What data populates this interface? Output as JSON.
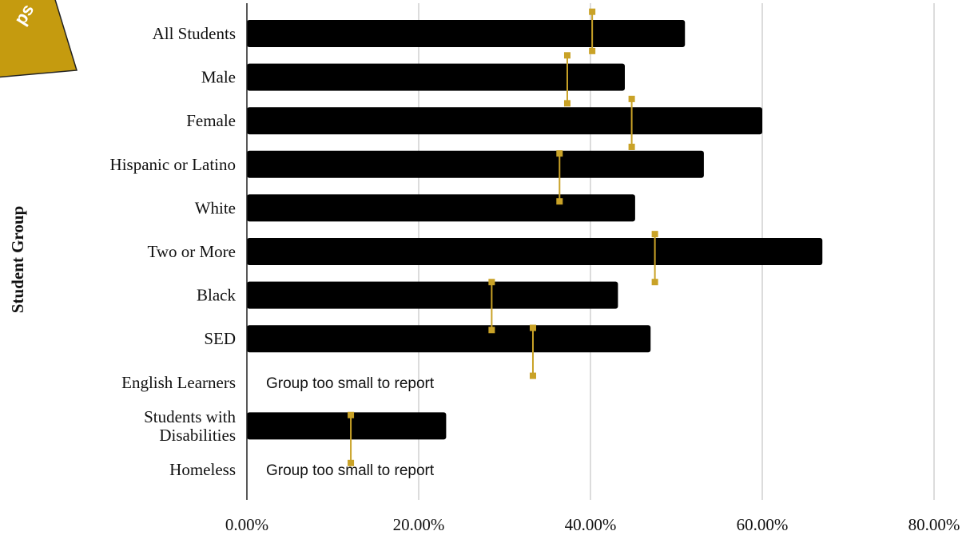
{
  "chart_data": {
    "type": "bar",
    "orientation": "horizontal",
    "title": "",
    "ylabel": "Student Group",
    "xlabel": "",
    "xlim": [
      0,
      80
    ],
    "x_ticks": [
      "0.00%",
      "20.00%",
      "40.00%",
      "60.00%",
      "80.00%"
    ],
    "x_tick_values": [
      0,
      20,
      40,
      60,
      80
    ],
    "grid": "vertical",
    "categories": [
      "All  Students",
      "Male",
      "Female",
      "Hispanic or Latino",
      "White",
      "Two or More",
      "Black",
      "SED",
      "English Learners",
      "Students with\nDisabilities",
      "Homeless"
    ],
    "series": [
      {
        "values": [
          51,
          44,
          60,
          53.2,
          45.2,
          67,
          43.2,
          47,
          null,
          23.2,
          null
        ]
      }
    ],
    "comparison_ranges": [
      {
        "category_index": 0,
        "x": 40.2,
        "from_index": -0.5,
        "to_index": 0.4
      },
      {
        "category_index": 1,
        "x": 37.3,
        "from_index": 0.5,
        "to_index": 1.6
      },
      {
        "category_index": 2,
        "x": 44.8,
        "from_index": 1.5,
        "to_index": 2.6
      },
      {
        "category_index": 3,
        "x": 36.4,
        "from_index": 2.75,
        "to_index": 3.85
      },
      {
        "category_index": 5,
        "x": 47.5,
        "from_index": 4.6,
        "to_index": 5.7
      },
      {
        "category_index": 6,
        "x": 28.5,
        "from_index": 5.7,
        "to_index": 6.8
      },
      {
        "category_index": 7,
        "x": 33.3,
        "from_index": 6.75,
        "to_index": 7.85
      },
      {
        "category_index": 9,
        "x": 12.1,
        "from_index": 8.75,
        "to_index": 9.85
      }
    ],
    "annotations": [
      {
        "category_index": 8,
        "text": "Group too small  to report"
      },
      {
        "category_index": 10,
        "text": "Group too small  to report"
      }
    ],
    "colors": {
      "bar": "#000000",
      "marker": "#c9a227",
      "grid": "#d0d0d0",
      "tag": "#c59b0f"
    }
  },
  "corner_tag": {
    "text": "ps"
  }
}
